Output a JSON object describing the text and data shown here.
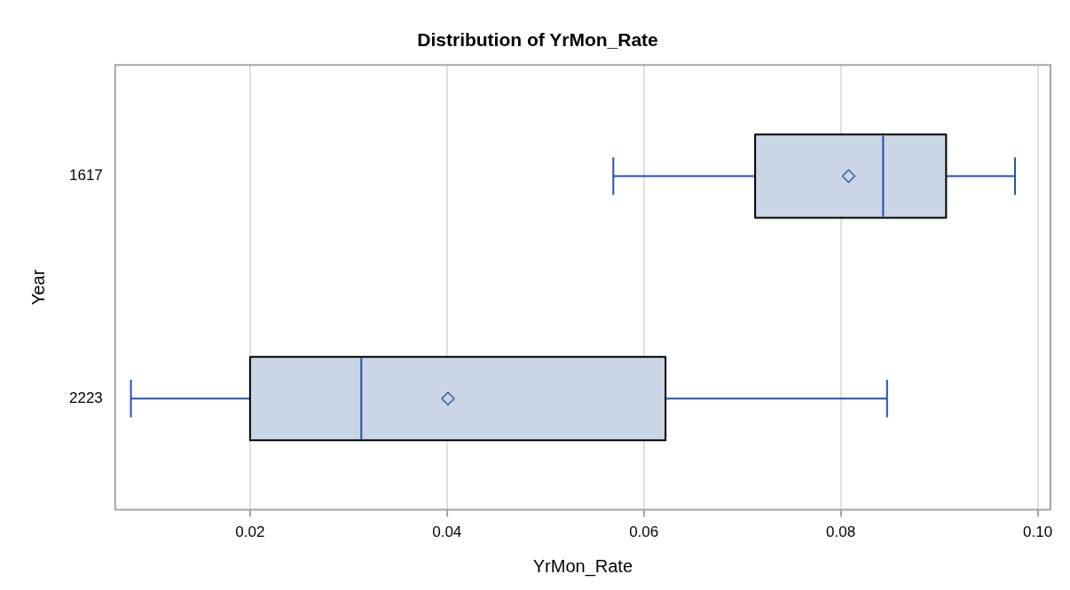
{
  "chart_data": {
    "type": "box",
    "orientation": "horizontal",
    "title": "Distribution of YrMon_Rate",
    "xlabel": "YrMon_Rate",
    "ylabel": "Year",
    "categories": [
      "1617",
      "2223"
    ],
    "series": [
      {
        "color": "#cad5e5",
        "boxes": [
          {
            "low": 0.0569,
            "q1": 0.0713,
            "median": 0.0843,
            "q3": 0.0907,
            "high": 0.0977,
            "mean": 0.0808
          },
          {
            "low": 0.0079,
            "q1": 0.02,
            "median": 0.0313,
            "q3": 0.0622,
            "high": 0.0847,
            "mean": 0.0401
          }
        ]
      }
    ],
    "xlim": [
      0.0063,
      0.1013
    ],
    "xticks": [
      0.02,
      0.04,
      0.06,
      0.08,
      {
        "value": 0.1,
        "label": "0.10"
      }
    ],
    "grid": "x",
    "marker": "diamond",
    "legend": false
  }
}
